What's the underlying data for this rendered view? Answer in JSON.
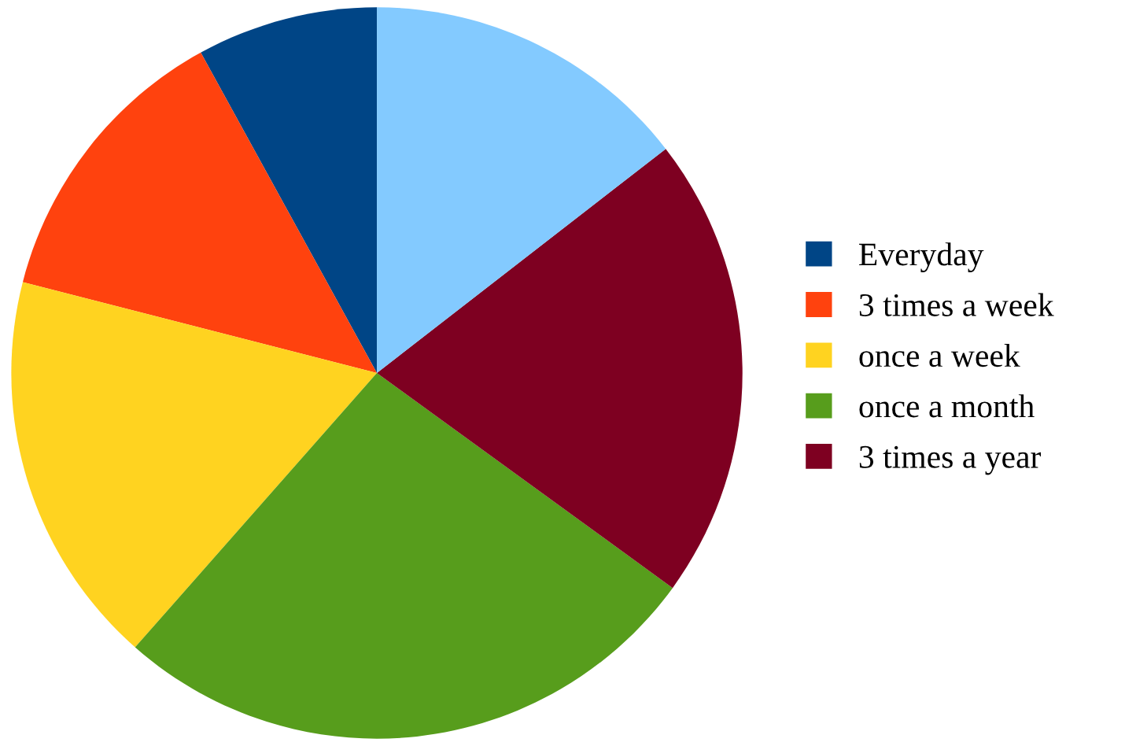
{
  "chart_data": {
    "type": "pie",
    "categories": [
      "Everyday",
      "3 times a week",
      "once a week",
      "once a month",
      "3 times a year",
      null
    ],
    "values": [
      8,
      13,
      17.5,
      26.5,
      20.5,
      14.5
    ],
    "colors": [
      "#004586",
      "#ff420e",
      "#ffd320",
      "#579d1c",
      "#7e0021",
      "#83caff"
    ],
    "legend": "right"
  }
}
